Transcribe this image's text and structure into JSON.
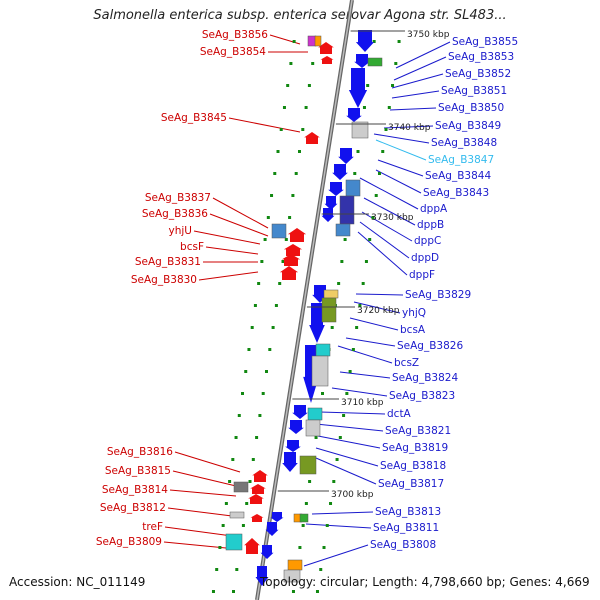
{
  "title": "Salmonella enterica subsp. enterica serovar Agona str. SL483...",
  "footer": {
    "accession": "Accession: NC_011149",
    "topology": "Topology: circular; Length: 4,798,660 bp; Genes: 4,669"
  },
  "colors": {
    "left_label": "#cc0000",
    "right_label": "#1a1acc",
    "highlight_label": "#33bbee",
    "backbone": "#888888",
    "forward_gene": "#1111ee",
    "reverse_gene": "#ee1111",
    "dot": "#118811"
  },
  "ticks": [
    "3750 kbp",
    "3740 kbp",
    "3730 kbp",
    "3720 kbp",
    "3710 kbp",
    "3700 kbp"
  ],
  "left_labels": [
    "SeAg_B3856",
    "SeAg_B3854",
    "SeAg_B3845",
    "SeAg_B3837",
    "SeAg_B3836",
    "yhjU",
    "bcsF",
    "SeAg_B3831",
    "SeAg_B3830",
    "SeAg_B3816",
    "SeAg_B3815",
    "SeAg_B3814",
    "SeAg_B3812",
    "treF",
    "SeAg_B3809"
  ],
  "right_labels": [
    "SeAg_B3855",
    "SeAg_B3853",
    "SeAg_B3852",
    "SeAg_B3851",
    "SeAg_B3850",
    "SeAg_B3849",
    "SeAg_B3848",
    "SeAg_B3847",
    "SeAg_B3844",
    "SeAg_B3843",
    "dppA",
    "dppB",
    "dppC",
    "dppD",
    "dppF",
    "SeAg_B3829",
    "yhjQ",
    "bcsA",
    "SeAg_B3826",
    "bcsZ",
    "SeAg_B3824",
    "SeAg_B3823",
    "dctA",
    "SeAg_B3821",
    "SeAg_B3819",
    "SeAg_B3818",
    "SeAg_B3817",
    "SeAg_B3813",
    "SeAg_B3811",
    "SeAg_B3808"
  ],
  "highlight_label": "SeAg_B3847"
}
